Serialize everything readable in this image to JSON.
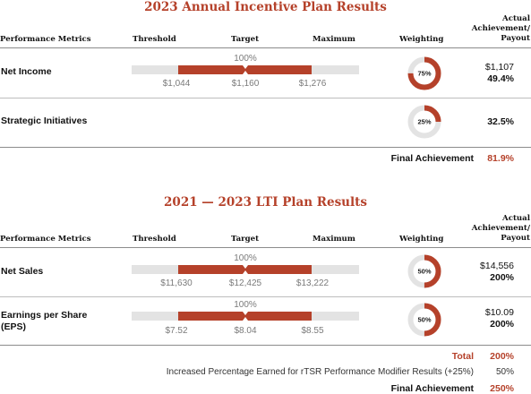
{
  "aip": {
    "title": "2023 Annual Incentive Plan Results",
    "headers": {
      "metrics": "Performance Metrics",
      "threshold": "Threshold",
      "target": "Target",
      "maximum": "Maximum",
      "weighting": "Weighting",
      "actual_line1": "Actual",
      "actual_line2": "Achievement/",
      "actual_line3": "Payout"
    },
    "rows": [
      {
        "name": "Net Income",
        "target_pct_label": "100%",
        "threshold_value": "$1,044",
        "target_value": "$1,160",
        "maximum_value": "$1,276",
        "weighting_label": "75%",
        "weighting_fraction": 0.75,
        "actual_value": "$1,107",
        "actual_pct": "49.4%"
      },
      {
        "name": "Strategic Initiatives",
        "weighting_label": "25%",
        "weighting_fraction": 0.25,
        "actual_pct": "32.5%"
      }
    ],
    "final_label": "Final Achievement",
    "final_value": "81.9%"
  },
  "lti": {
    "title": "2021 — 2023 LTI Plan Results",
    "headers": {
      "metrics": "Performance Metrics",
      "threshold": "Threshold",
      "target": "Target",
      "maximum": "Maximum",
      "weighting": "Weighting",
      "actual_line1": "Actual",
      "actual_line2": "Achievement/",
      "actual_line3": "Payout"
    },
    "rows": [
      {
        "name": "Net Sales",
        "target_pct_label": "100%",
        "threshold_value": "$11,630",
        "target_value": "$12,425",
        "maximum_value": "$13,222",
        "weighting_label": "50%",
        "weighting_fraction": 0.5,
        "actual_value": "$14,556",
        "actual_pct": "200%"
      },
      {
        "name_line1": "Earnings per Share",
        "name_line2": "(EPS)",
        "target_pct_label": "100%",
        "threshold_value": "$7.52",
        "target_value": "$8.04",
        "maximum_value": "$8.55",
        "weighting_label": "50%",
        "weighting_fraction": 0.5,
        "actual_value": "$10.09",
        "actual_pct": "200%"
      }
    ],
    "total_label": "Total",
    "total_value": "200%",
    "modifier_label": "Increased Percentage Earned for rTSR Performance Modifier Results (+25%)",
    "modifier_value": "50%",
    "final_label": "Final Achievement",
    "final_value": "250%"
  },
  "colors": {
    "accent": "#b5412a",
    "track": "#e3e3e3"
  }
}
